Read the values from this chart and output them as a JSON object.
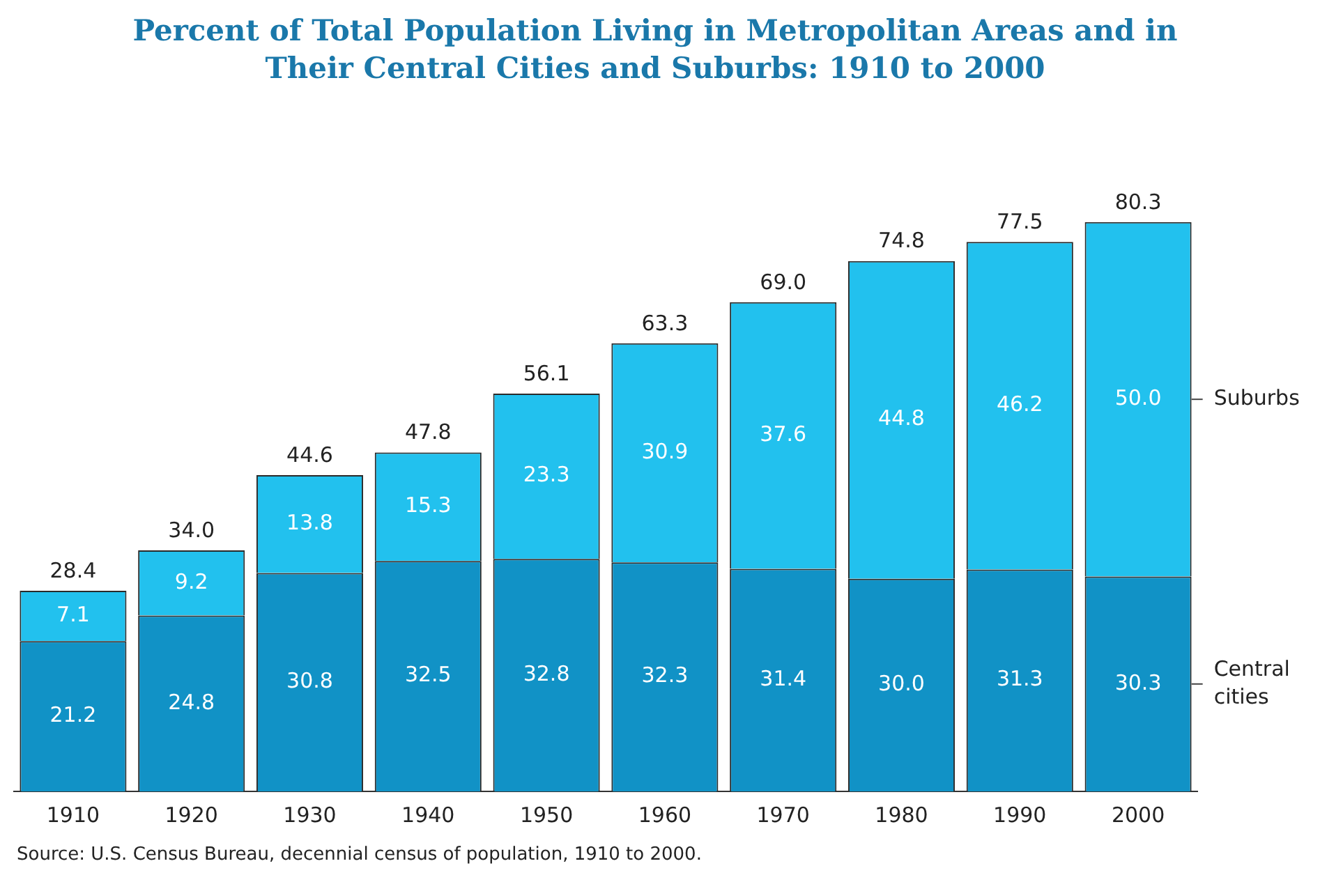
{
  "chart_data": {
    "type": "bar",
    "title": "Percent of Total Population Living in Metropolitan Areas and in Their Central Cities and Suburbs:  1910 to 2000",
    "categories": [
      "1910",
      "1920",
      "1930",
      "1940",
      "1950",
      "1960",
      "1970",
      "1980",
      "1990",
      "2000"
    ],
    "series": [
      {
        "name": "Central cities",
        "color": "#1192c6",
        "values": [
          21.2,
          24.8,
          30.8,
          32.5,
          32.8,
          32.3,
          31.4,
          30.0,
          31.3,
          30.3
        ],
        "value_labels": [
          "21.2",
          "24.8",
          "30.8",
          "32.5",
          "32.8",
          "32.3",
          "31.4",
          "30.0",
          "31.3",
          "30.3"
        ]
      },
      {
        "name": "Suburbs",
        "color": "#22c1ee",
        "values": [
          7.1,
          9.2,
          13.8,
          15.3,
          23.3,
          30.9,
          37.6,
          44.8,
          46.2,
          50.0
        ],
        "value_labels": [
          "7.1",
          "9.2",
          "13.8",
          "15.3",
          "23.3",
          "30.9",
          "37.6",
          "44.8",
          "46.2",
          "50.0"
        ]
      }
    ],
    "stacked": true,
    "totals": [
      "28.4",
      "34.0",
      "44.6",
      "47.8",
      "56.1",
      "63.3",
      "69.0",
      "74.8",
      "77.5",
      "80.3"
    ],
    "tick_labels": "x",
    "grid": false,
    "annotations": [
      "Source:  U.S. Census Bureau, decennial census of population, 1910 to 2000."
    ]
  }
}
